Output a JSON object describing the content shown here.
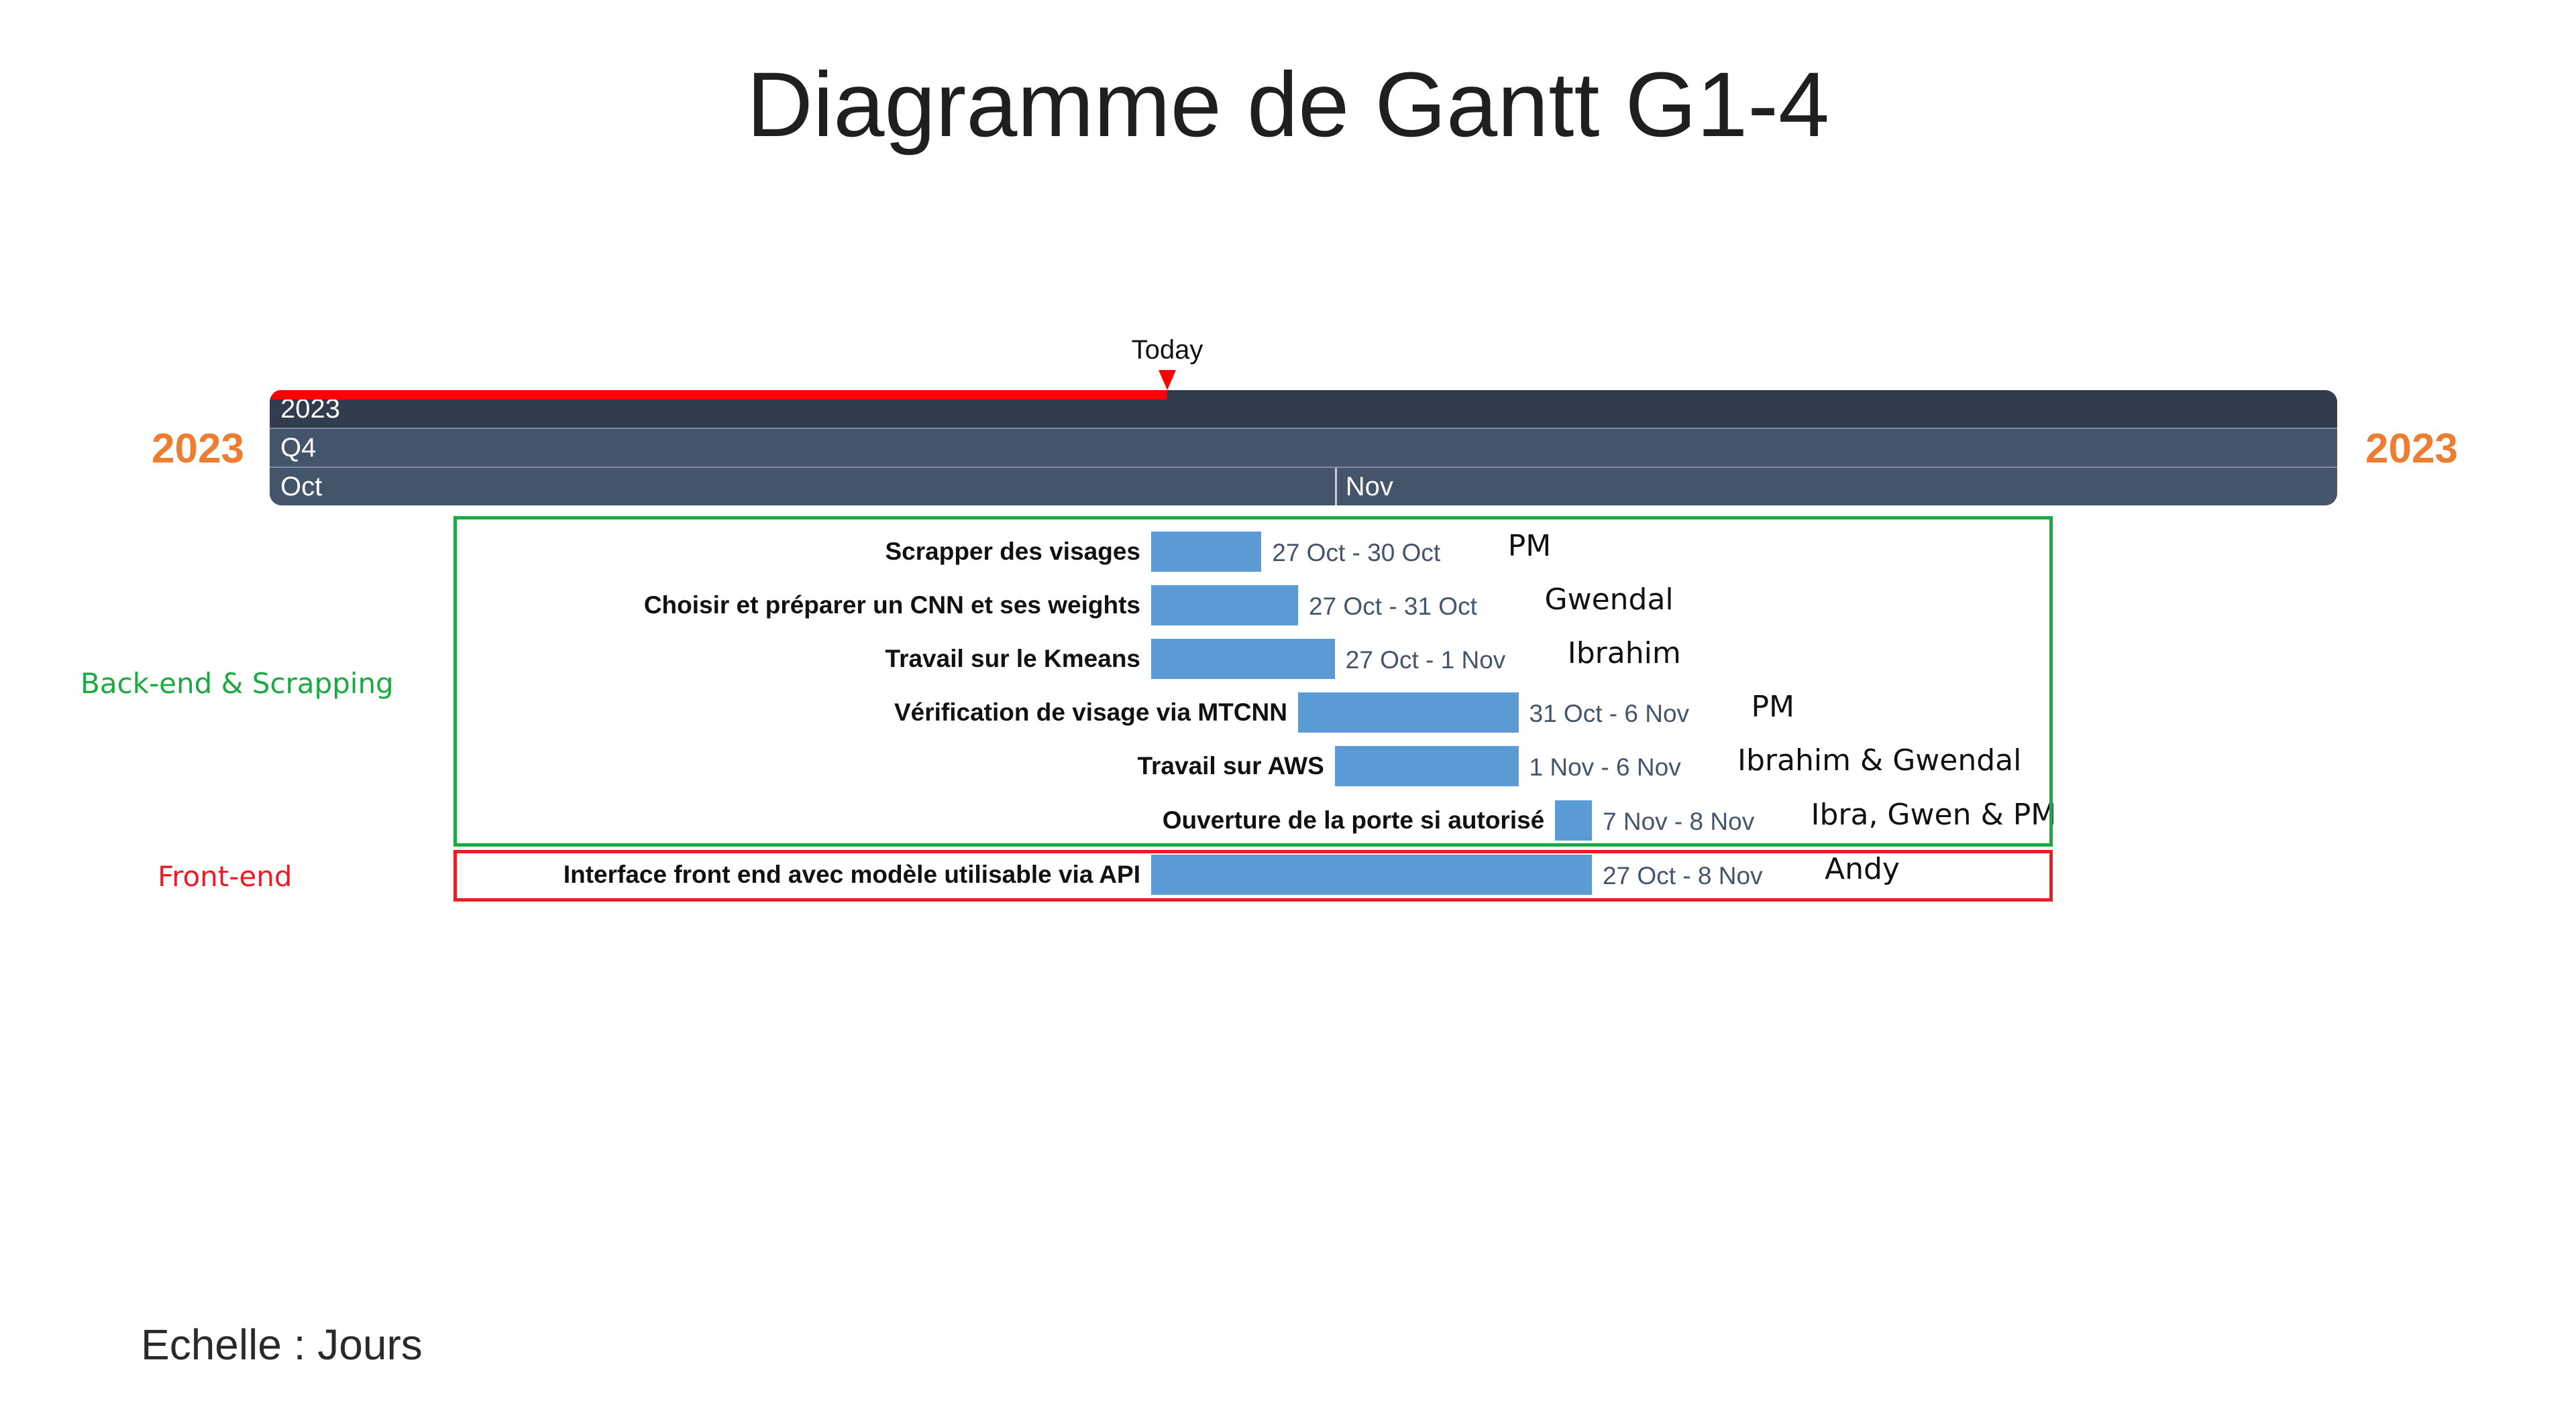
{
  "title": "Diagramme de Gantt G1-4",
  "side_year_left": "2023",
  "side_year_right": "2023",
  "side_year_color": "#ed7d31",
  "today_label": "Today",
  "today_color": "#ff0000",
  "timeline": {
    "year": "2023",
    "quarter": "Q4",
    "months": [
      "Oct",
      "Nov"
    ]
  },
  "scale_note": "Echelle : Jours",
  "chart_data": {
    "type": "gantt",
    "title": "Diagramme de Gantt G1-4",
    "x_domain": [
      "2023-10-01",
      "2023-12-01"
    ],
    "month_starts": [
      "2023-10-01",
      "2023-11-01"
    ],
    "today": "2023-10-27",
    "bar_color": "#5b9bd5",
    "groups": [
      {
        "name": "Back-end & Scrapping",
        "color": "#1aab40",
        "task_indices": [
          0,
          1,
          2,
          3,
          4,
          5
        ]
      },
      {
        "name": "Front-end",
        "color": "#ed1c24",
        "task_indices": [
          6
        ]
      }
    ],
    "tasks": [
      {
        "name": "Scrapper des visages",
        "start": "2023-10-27",
        "end": "2023-10-30",
        "label": "27 Oct - 30 Oct",
        "owner": "PM"
      },
      {
        "name": "Choisir et préparer un CNN et ses weights",
        "start": "2023-10-27",
        "end": "2023-10-31",
        "label": "27 Oct - 31 Oct",
        "owner": "Gwendal"
      },
      {
        "name": "Travail sur le Kmeans",
        "start": "2023-10-27",
        "end": "2023-11-01",
        "label": "27 Oct - 1 Nov",
        "owner": "Ibrahim"
      },
      {
        "name": "Vérification de visage via MTCNN",
        "start": "2023-10-31",
        "end": "2023-11-06",
        "label": "31 Oct - 6 Nov",
        "owner": "PM"
      },
      {
        "name": "Travail sur AWS",
        "start": "2023-11-01",
        "end": "2023-11-06",
        "label": "1 Nov - 6 Nov",
        "owner": "Ibrahim & Gwendal"
      },
      {
        "name": "Ouverture de la porte si autorisé",
        "start": "2023-11-07",
        "end": "2023-11-08",
        "label": "7 Nov - 8 Nov",
        "owner": "Ibra, Gwen & PM"
      },
      {
        "name": "Interface front end avec modèle utilisable via API",
        "start": "2023-10-27",
        "end": "2023-11-08",
        "label": "27 Oct - 8 Nov",
        "owner": "Andy"
      }
    ]
  }
}
